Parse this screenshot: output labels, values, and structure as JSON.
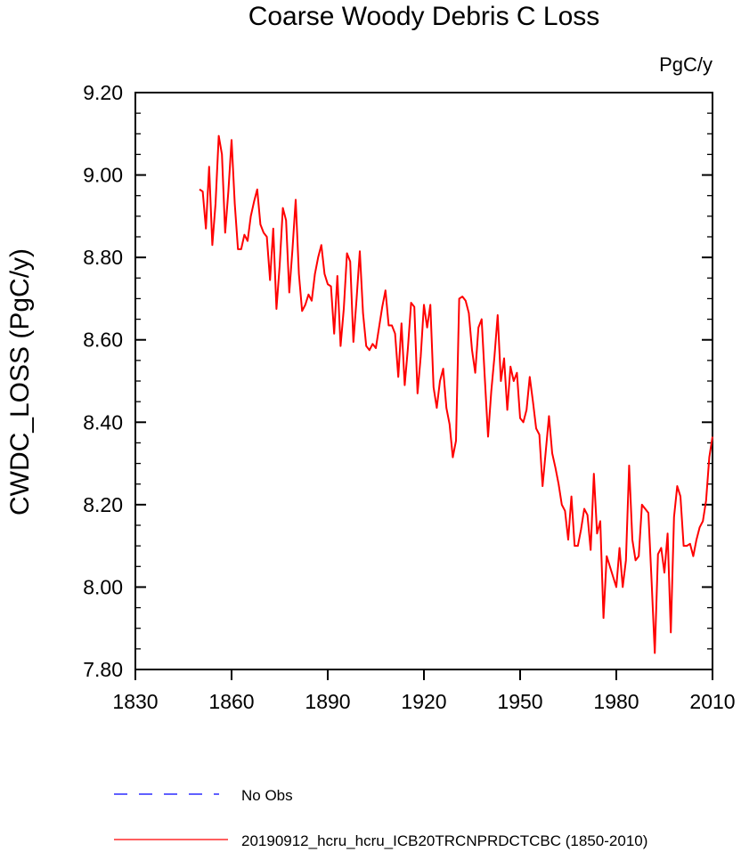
{
  "chart_data": {
    "type": "line",
    "title": "Coarse Woody Debris C Loss",
    "units": "PgC/y",
    "ylabel": "CWDC_LOSS  (PgC/y)",
    "xlabel": "",
    "xlim": [
      1830,
      2010
    ],
    "ylim": [
      7.8,
      9.2
    ],
    "x_ticks": [
      1830,
      1860,
      1890,
      1920,
      1950,
      1980,
      2010
    ],
    "x_tick_labels": [
      "1830",
      "1860",
      "1890",
      "1920",
      "1950",
      "1980",
      "2010"
    ],
    "y_ticks": [
      7.8,
      8.0,
      8.2,
      8.4,
      8.6,
      8.8,
      9.0,
      9.2
    ],
    "y_tick_labels": [
      "7.80",
      "8.00",
      "8.20",
      "8.40",
      "8.60",
      "8.80",
      "9.00",
      "9.20"
    ],
    "grid": false,
    "legend_placement": "bottom",
    "series": [
      {
        "name": "20190912_hcru_hcru_ICB20TRCNPRDCTCBC (1850-2010)",
        "color": "#ff0000",
        "style": "solid",
        "x": [
          1850,
          1851,
          1852,
          1853,
          1854,
          1855,
          1856,
          1857,
          1858,
          1859,
          1860,
          1861,
          1862,
          1863,
          1864,
          1865,
          1866,
          1867,
          1868,
          1869,
          1870,
          1871,
          1872,
          1873,
          1874,
          1875,
          1876,
          1877,
          1878,
          1879,
          1880,
          1881,
          1882,
          1883,
          1884,
          1885,
          1886,
          1887,
          1888,
          1889,
          1890,
          1891,
          1892,
          1893,
          1894,
          1895,
          1896,
          1897,
          1898,
          1899,
          1900,
          1901,
          1902,
          1903,
          1904,
          1905,
          1906,
          1907,
          1908,
          1909,
          1910,
          1911,
          1912,
          1913,
          1914,
          1915,
          1916,
          1917,
          1918,
          1919,
          1920,
          1921,
          1922,
          1923,
          1924,
          1925,
          1926,
          1927,
          1928,
          1929,
          1930,
          1931,
          1932,
          1933,
          1934,
          1935,
          1936,
          1937,
          1938,
          1939,
          1940,
          1941,
          1942,
          1943,
          1944,
          1945,
          1946,
          1947,
          1948,
          1949,
          1950,
          1951,
          1952,
          1953,
          1954,
          1955,
          1956,
          1957,
          1958,
          1959,
          1960,
          1961,
          1962,
          1963,
          1964,
          1965,
          1966,
          1967,
          1968,
          1969,
          1970,
          1971,
          1972,
          1973,
          1974,
          1975,
          1976,
          1977,
          1978,
          1979,
          1980,
          1981,
          1982,
          1983,
          1984,
          1985,
          1986,
          1987,
          1988,
          1989,
          1990,
          1991,
          1992,
          1993,
          1994,
          1995,
          1996,
          1997,
          1998,
          1999,
          2000,
          2001,
          2002,
          2003,
          2004,
          2005,
          2006,
          2007,
          2008,
          2009,
          2010
        ],
        "y": [
          8.965,
          8.96,
          8.87,
          9.02,
          8.83,
          8.93,
          9.095,
          9.05,
          8.86,
          8.96,
          9.085,
          8.93,
          8.82,
          8.82,
          8.855,
          8.84,
          8.9,
          8.935,
          8.965,
          8.88,
          8.86,
          8.85,
          8.745,
          8.87,
          8.675,
          8.78,
          8.92,
          8.89,
          8.715,
          8.82,
          8.94,
          8.76,
          8.67,
          8.685,
          8.71,
          8.695,
          8.76,
          8.8,
          8.83,
          8.76,
          8.735,
          8.73,
          8.615,
          8.755,
          8.585,
          8.675,
          8.81,
          8.79,
          8.595,
          8.7,
          8.815,
          8.665,
          8.585,
          8.575,
          8.59,
          8.58,
          8.63,
          8.68,
          8.72,
          8.635,
          8.635,
          8.615,
          8.51,
          8.64,
          8.49,
          8.58,
          8.69,
          8.68,
          8.47,
          8.56,
          8.685,
          8.63,
          8.685,
          8.485,
          8.435,
          8.5,
          8.53,
          8.435,
          8.395,
          8.315,
          8.355,
          8.7,
          8.705,
          8.695,
          8.665,
          8.575,
          8.52,
          8.63,
          8.65,
          8.505,
          8.365,
          8.475,
          8.56,
          8.66,
          8.5,
          8.555,
          8.43,
          8.535,
          8.5,
          8.52,
          8.41,
          8.4,
          8.43,
          8.51,
          8.45,
          8.385,
          8.37,
          8.245,
          8.33,
          8.415,
          8.325,
          8.29,
          8.25,
          8.2,
          8.185,
          8.115,
          8.22,
          8.1,
          8.1,
          8.14,
          8.19,
          8.175,
          8.09,
          8.275,
          8.13,
          8.16,
          7.925,
          8.075,
          8.05,
          8.025,
          8.0,
          8.095,
          8.0,
          8.065,
          8.295,
          8.115,
          8.065,
          8.075,
          8.2,
          8.19,
          8.18,
          8.015,
          7.84,
          8.08,
          8.095,
          8.035,
          8.13,
          7.89,
          8.17,
          8.245,
          8.22,
          8.1,
          8.1,
          8.105,
          8.075,
          8.115,
          8.145,
          8.16,
          8.21,
          8.315,
          8.365
        ]
      }
    ],
    "reference_series": {
      "name": "No Obs",
      "color": "#0000ff",
      "style": "dashed"
    }
  }
}
